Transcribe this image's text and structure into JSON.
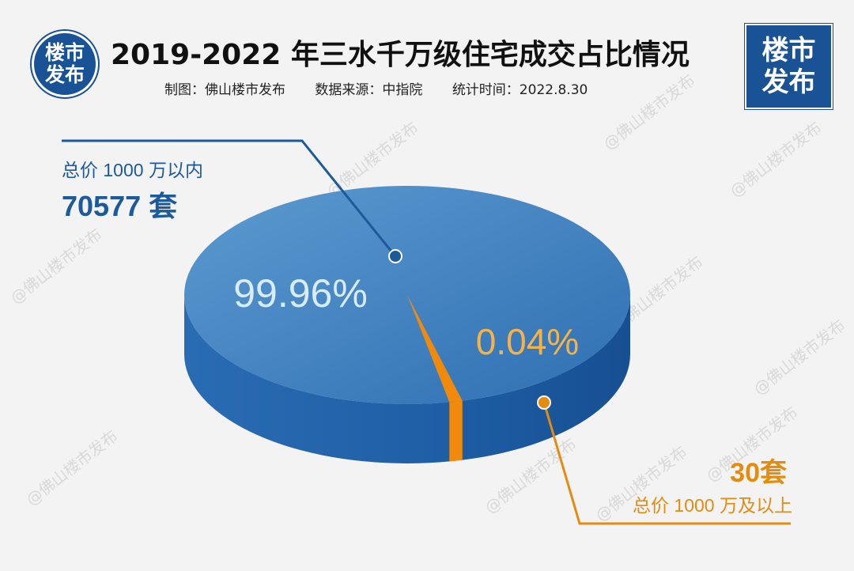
{
  "header": {
    "title": "2019-2022 年三水千万级住宅成交占比情况",
    "subtitle_maker": "制图：佛山楼市发布",
    "subtitle_source": "数据来源：中指院",
    "subtitle_time": "统计时间：2022.8.30"
  },
  "logos": {
    "left_line1": "楼市",
    "left_line2": "发布",
    "right_line1": "楼市",
    "right_line2": "发布"
  },
  "watermark": "@佛山楼市发布",
  "chart_data": {
    "type": "pie",
    "title": "2019-2022 年三水千万级住宅成交占比情况",
    "slices": [
      {
        "label": "总价 1000 万以内",
        "count_text": "70577 套",
        "value": 70577,
        "percent_text": "99.96%",
        "color": "#2e72b8"
      },
      {
        "label": "总价 1000 万及以上",
        "count_text": "30套",
        "value": 30,
        "percent_text": "0.04%",
        "color": "#f08a0c"
      }
    ]
  }
}
